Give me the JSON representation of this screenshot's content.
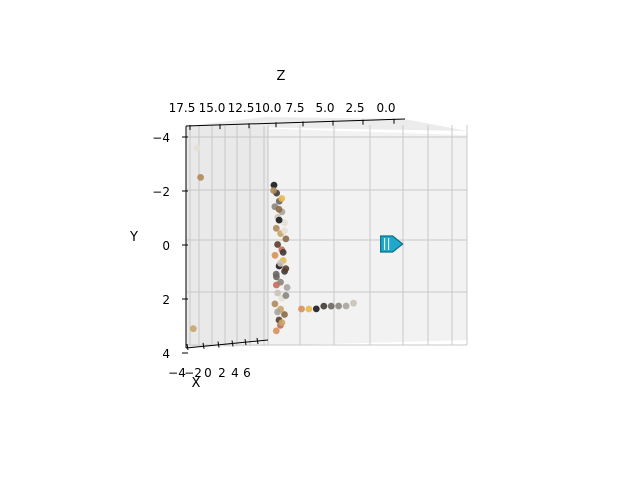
{
  "chart_data": {
    "type": "scatter",
    "projection": "3d",
    "title": "",
    "axes": {
      "x": {
        "label": "X",
        "ticks": [
          "−4",
          "−2",
          "0",
          "2",
          "4",
          "6"
        ],
        "range": [
          -4,
          7
        ]
      },
      "y": {
        "label": "Y",
        "ticks": [
          "−4",
          "−2",
          "0",
          "2",
          "4"
        ],
        "range": [
          -4,
          4
        ]
      },
      "z": {
        "label": "Z",
        "ticks": [
          "17.5",
          "15.0",
          "12.5",
          "10.0",
          "7.5",
          "5.0",
          "2.5",
          "0.0"
        ],
        "range": [
          0,
          18
        ]
      }
    },
    "grid": true,
    "legend": "none",
    "series": [
      {
        "kind": "point-cloud",
        "colors": [
          "#1a1a1a",
          "#3d3a36",
          "#6b6560",
          "#8a8580",
          "#a9a39c",
          "#c9c2b8",
          "#e6e0d4",
          "#b08a5a",
          "#c9a46a",
          "#8c6a45",
          "#5a3d2b",
          "#c46a5a",
          "#d9905a",
          "#e8b84a"
        ],
        "points": [
          [
            -0.5,
            -2.2,
            10.2
          ],
          [
            -0.3,
            -1.9,
            10.0
          ],
          [
            0.1,
            -1.6,
            9.8
          ],
          [
            -0.8,
            -1.4,
            10.1
          ],
          [
            0.4,
            -1.2,
            9.6
          ],
          [
            -0.2,
            -1.0,
            9.9
          ],
          [
            0.6,
            -0.8,
            9.4
          ],
          [
            -0.6,
            -0.6,
            10.0
          ],
          [
            0.2,
            -0.4,
            9.7
          ],
          [
            0.8,
            -0.2,
            9.3
          ],
          [
            -0.4,
            0.0,
            9.9
          ],
          [
            0.3,
            0.2,
            9.6
          ],
          [
            -0.7,
            0.4,
            10.1
          ],
          [
            0.5,
            0.6,
            9.5
          ],
          [
            -0.1,
            0.8,
            9.8
          ],
          [
            0.7,
            1.0,
            9.4
          ],
          [
            -0.5,
            1.2,
            10.0
          ],
          [
            0.1,
            1.4,
            9.7
          ],
          [
            0.9,
            1.6,
            9.2
          ],
          [
            -0.3,
            1.8,
            9.9
          ],
          [
            0.4,
            2.0,
            9.6
          ],
          [
            -0.8,
            2.2,
            10.1
          ],
          [
            0.2,
            2.4,
            9.7
          ],
          [
            0.6,
            2.6,
            9.4
          ],
          [
            -0.2,
            2.8,
            9.8
          ],
          [
            0.0,
            3.0,
            9.7
          ],
          [
            -0.6,
            3.2,
            10.0
          ],
          [
            0.3,
            -1.7,
            9.6
          ],
          [
            -0.1,
            -0.9,
            9.8
          ],
          [
            0.5,
            0.3,
            9.5
          ],
          [
            -0.7,
            1.1,
            10.0
          ],
          [
            0.8,
            1.9,
            9.3
          ],
          [
            -0.4,
            2.5,
            9.9
          ],
          [
            0.1,
            0.7,
            9.7
          ],
          [
            0.6,
            -0.5,
            9.4
          ],
          [
            -0.9,
            -2.0,
            10.2
          ],
          [
            0.4,
            2.9,
            9.6
          ],
          [
            -0.2,
            -1.3,
            9.8
          ],
          [
            0.7,
            0.9,
            9.3
          ],
          [
            -0.5,
            1.5,
            10.0
          ],
          [
            1.2,
            2.4,
            8.0
          ],
          [
            1.6,
            2.4,
            7.4
          ],
          [
            2.0,
            2.4,
            6.8
          ],
          [
            2.4,
            2.3,
            6.2
          ],
          [
            2.8,
            2.3,
            5.6
          ],
          [
            3.2,
            2.3,
            5.0
          ],
          [
            3.6,
            2.3,
            4.4
          ],
          [
            4.0,
            2.2,
            3.8
          ],
          [
            -3.8,
            -3.6,
            16.5
          ],
          [
            -3.6,
            -2.5,
            16.2
          ],
          [
            -3.9,
            3.1,
            16.8
          ]
        ]
      },
      {
        "kind": "marker",
        "label": "",
        "color": "#1fa8c9",
        "points": [
          [
            2.5,
            0.0,
            0.5
          ]
        ]
      }
    ]
  }
}
